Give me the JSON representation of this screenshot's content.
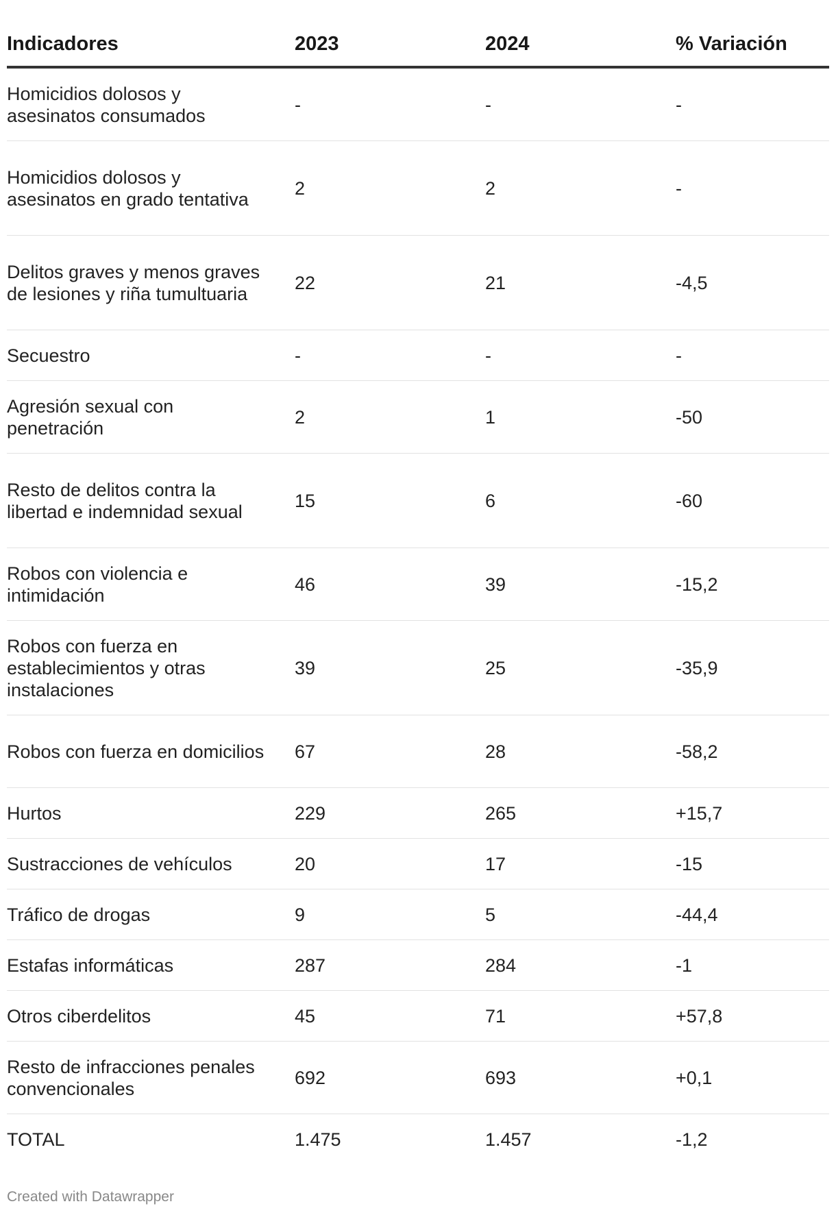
{
  "chart_data": {
    "type": "table",
    "columns": [
      "Indicadores",
      "2023",
      "2024",
      "% Variación"
    ],
    "rows": [
      {
        "indicador": "Homicidios dolosos y asesinatos consumados",
        "y2023": "-",
        "y2024": "-",
        "variacion": "-"
      },
      {
        "indicador": "Homicidios dolosos y asesinatos en grado tentativa",
        "y2023": "2",
        "y2024": "2",
        "variacion": "-"
      },
      {
        "indicador": "Delitos graves y menos graves de lesiones y riña tumultuaria",
        "y2023": "22",
        "y2024": "21",
        "variacion": "-4,5"
      },
      {
        "indicador": "Secuestro",
        "y2023": "-",
        "y2024": "-",
        "variacion": "-"
      },
      {
        "indicador": "Agresión sexual con penetración",
        "y2023": "2",
        "y2024": "1",
        "variacion": "-50"
      },
      {
        "indicador": "Resto de delitos contra la libertad e indemnidad sexual",
        "y2023": "15",
        "y2024": "6",
        "variacion": "-60"
      },
      {
        "indicador": "Robos con violencia e intimidación",
        "y2023": "46",
        "y2024": "39",
        "variacion": "-15,2"
      },
      {
        "indicador": "Robos con fuerza en establecimientos y otras instalaciones",
        "y2023": "39",
        "y2024": "25",
        "variacion": "-35,9"
      },
      {
        "indicador": "Robos con fuerza en domicilios",
        "y2023": "67",
        "y2024": "28",
        "variacion": "-58,2"
      },
      {
        "indicador": "Hurtos",
        "y2023": "229",
        "y2024": "265",
        "variacion": "+15,7"
      },
      {
        "indicador": "Sustracciones de vehículos",
        "y2023": "20",
        "y2024": "17",
        "variacion": "-15"
      },
      {
        "indicador": "Tráfico de drogas",
        "y2023": "9",
        "y2024": "5",
        "variacion": "-44,4"
      },
      {
        "indicador": "Estafas informáticas",
        "y2023": "287",
        "y2024": "284",
        "variacion": "-1"
      },
      {
        "indicador": "Otros ciberdelitos",
        "y2023": "45",
        "y2024": "71",
        "variacion": "+57,8"
      },
      {
        "indicador": "Resto de infracciones penales convencionales",
        "y2023": "692",
        "y2024": "693",
        "variacion": "+0,1"
      },
      {
        "indicador": "TOTAL",
        "y2023": "1.475",
        "y2024": "1.457",
        "variacion": "-1,2"
      }
    ]
  },
  "footer": {
    "credit": "Created with Datawrapper"
  }
}
